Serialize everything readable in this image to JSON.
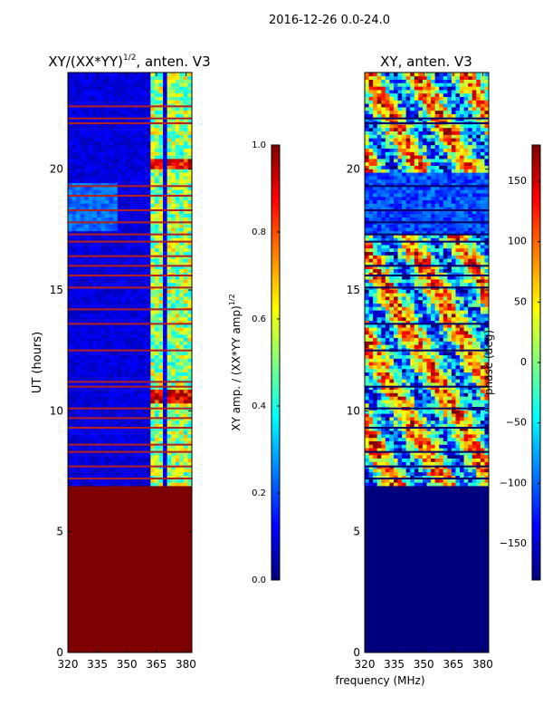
{
  "figure_title": "2016-12-26 0.0-24.0",
  "colors": {
    "jet": [
      "#00007f",
      "#0000ff",
      "#007fff",
      "#00ffff",
      "#7fff7f",
      "#ffff00",
      "#ff7f00",
      "#ff0000",
      "#7f0000"
    ],
    "flag_line": "#b22222",
    "frame": "#000000"
  },
  "chart_data": [
    {
      "type": "heatmap",
      "title_main": "XY/(XX*YY)",
      "title_exp": "1/2",
      "title_tail": ", anten. V3",
      "xlabel": "",
      "ylabel": "UT (hours)",
      "xlim": [
        320,
        383
      ],
      "ylim": [
        0,
        24
      ],
      "xticks": [
        320,
        335,
        350,
        365,
        380
      ],
      "yticks": [
        0,
        5,
        10,
        15,
        20
      ],
      "data_start_hour": 6.9,
      "fill_below_start": "#7f0000",
      "band_columns_mhz": [
        362,
        364,
        366,
        368,
        371,
        373,
        375,
        377,
        379,
        381
      ],
      "flagged_hours": [
        7.2,
        7.7,
        8.3,
        8.6,
        9.3,
        9.7,
        10.1,
        11.0,
        11.2,
        12.5,
        13.6,
        14.2,
        15.1,
        15.6,
        16.0,
        16.4,
        17.0,
        17.3,
        17.8,
        18.3,
        18.9,
        19.3,
        21.9,
        22.1,
        22.6
      ],
      "colorbar": {
        "label": "XY amp. / (XX*YY amp)",
        "label_exp": "1/2",
        "range": [
          0.0,
          1.0
        ],
        "ticks": [
          "0.0",
          "0.2",
          "0.4",
          "0.6",
          "0.8",
          "1.0"
        ]
      }
    },
    {
      "type": "heatmap",
      "title_main": "XY, anten. V3",
      "title_exp": "",
      "title_tail": "",
      "xlabel": "frequency (MHz)",
      "ylabel": "",
      "xlim": [
        320,
        383
      ],
      "ylim": [
        0,
        24
      ],
      "xticks": [
        320,
        335,
        350,
        365,
        380
      ],
      "yticks": [
        0,
        5,
        10,
        15,
        20
      ],
      "data_start_hour": 6.9,
      "fill_below_start": "#00007f",
      "flagged_hours": [
        7.2,
        7.7,
        8.3,
        9.3,
        10.1,
        11.0,
        12.5,
        13.6,
        15.1,
        15.6,
        16.0,
        17.0,
        17.3,
        17.8,
        18.3,
        19.3,
        21.9,
        22.1
      ],
      "colorbar": {
        "label": "phase (deg)",
        "label_exp": "",
        "range": [
          -180,
          180
        ],
        "ticks": [
          "−150",
          "−100",
          "−50",
          "0",
          "50",
          "100",
          "150"
        ]
      }
    }
  ]
}
